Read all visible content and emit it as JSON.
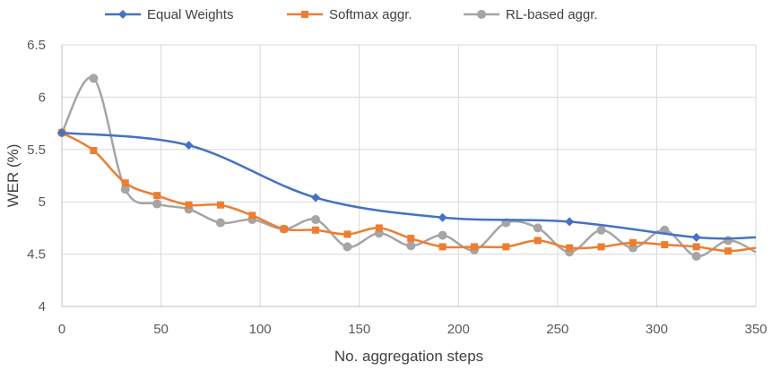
{
  "chart_data": {
    "type": "line",
    "title": "",
    "xlabel": "No. aggregation steps",
    "ylabel": "WER (%)",
    "xlim": [
      0,
      350
    ],
    "ylim": [
      4,
      6.5
    ],
    "xticks": [
      0,
      50,
      100,
      150,
      200,
      250,
      300,
      350
    ],
    "yticks": [
      4,
      4.5,
      5,
      5.5,
      6,
      6.5
    ],
    "xtick_labels": [
      "0",
      "50",
      "100",
      "150",
      "200",
      "250",
      "300",
      "350"
    ],
    "ytick_labels": [
      "4",
      "4.5",
      "5",
      "5.5",
      "6",
      "6.5"
    ],
    "grid": true,
    "legend_position": "top",
    "series": [
      {
        "name": "Equal Weights",
        "color": "#4472C4",
        "marker": "diamond",
        "x": [
          0,
          64,
          128,
          192,
          256,
          320,
          350
        ],
        "y": [
          5.66,
          5.54,
          5.04,
          4.85,
          4.81,
          4.66,
          4.66
        ]
      },
      {
        "name": "Softmax aggr.",
        "color": "#ED7D31",
        "marker": "square",
        "x": [
          0,
          16,
          32,
          48,
          64,
          80,
          96,
          112,
          128,
          144,
          160,
          176,
          192,
          208,
          224,
          240,
          256,
          272,
          288,
          304,
          320,
          336,
          350
        ],
        "y": [
          5.66,
          5.49,
          5.18,
          5.06,
          4.97,
          4.97,
          4.87,
          4.74,
          4.73,
          4.69,
          4.75,
          4.65,
          4.57,
          4.57,
          4.57,
          4.63,
          4.56,
          4.57,
          4.61,
          4.59,
          4.57,
          4.53,
          4.56
        ]
      },
      {
        "name": "RL-based aggr.",
        "color": "#A5A5A5",
        "marker": "circle",
        "x": [
          0,
          16,
          32,
          48,
          64,
          80,
          96,
          112,
          128,
          144,
          160,
          176,
          192,
          208,
          224,
          240,
          256,
          272,
          288,
          304,
          320,
          336,
          350
        ],
        "y": [
          5.66,
          6.18,
          5.12,
          4.98,
          4.93,
          4.8,
          4.83,
          4.74,
          4.83,
          4.57,
          4.7,
          4.58,
          4.68,
          4.54,
          4.8,
          4.75,
          4.52,
          4.73,
          4.56,
          4.73,
          4.48,
          4.63,
          4.52
        ]
      }
    ]
  }
}
